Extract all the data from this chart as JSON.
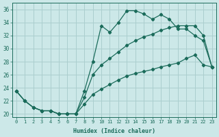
{
  "xlabel": "Humidex (Indice chaleur)",
  "bg_color": "#cce8e8",
  "grid_color": "#aacece",
  "line_color": "#1a6b5a",
  "xlim": [
    -0.5,
    23.5
  ],
  "ylim": [
    19.5,
    37
  ],
  "xticks": [
    0,
    1,
    2,
    3,
    4,
    5,
    6,
    7,
    8,
    9,
    10,
    11,
    12,
    13,
    14,
    15,
    16,
    17,
    18,
    19,
    20,
    21,
    22,
    23
  ],
  "yticks": [
    20,
    22,
    24,
    26,
    28,
    30,
    32,
    34,
    36
  ],
  "line1_x": [
    0,
    1,
    2,
    3,
    4,
    5,
    6,
    7,
    8,
    9,
    10,
    11,
    12,
    13,
    14,
    15,
    16,
    17,
    18,
    19,
    20,
    21,
    22,
    23
  ],
  "line1_y": [
    23.5,
    22.0,
    21.0,
    20.5,
    20.5,
    20.0,
    20.0,
    20.0,
    23.5,
    28.0,
    33.5,
    32.5,
    34.0,
    35.8,
    35.8,
    35.3,
    34.5,
    35.2,
    34.5,
    33.0,
    33.0,
    32.0,
    31.2,
    27.2
  ],
  "line2_x": [
    0,
    1,
    2,
    3,
    4,
    5,
    6,
    7,
    8,
    9,
    10,
    11,
    12,
    13,
    14,
    15,
    16,
    17,
    18,
    19,
    20,
    21,
    22,
    23
  ],
  "line2_y": [
    23.5,
    22.0,
    21.0,
    20.5,
    20.5,
    20.0,
    20.0,
    20.0,
    22.5,
    26.0,
    27.5,
    28.5,
    29.5,
    30.5,
    31.2,
    31.8,
    32.2,
    32.8,
    33.2,
    33.5,
    33.5,
    33.5,
    32.0,
    27.2
  ],
  "line3_x": [
    0,
    1,
    2,
    3,
    4,
    5,
    6,
    7,
    8,
    9,
    10,
    11,
    12,
    13,
    14,
    15,
    16,
    17,
    18,
    19,
    20,
    21,
    22,
    23
  ],
  "line3_y": [
    23.5,
    22.0,
    21.0,
    20.5,
    20.5,
    20.0,
    20.0,
    20.0,
    21.5,
    23.0,
    23.8,
    24.5,
    25.2,
    25.8,
    26.2,
    26.5,
    26.8,
    27.2,
    27.5,
    27.8,
    28.5,
    29.0,
    27.5,
    27.2
  ]
}
